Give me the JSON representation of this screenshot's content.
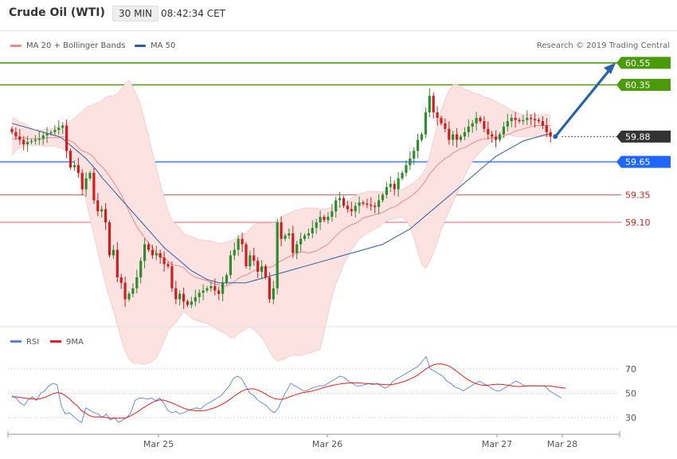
{
  "header": {
    "title": "Crude Oil (WTI)",
    "timeframe": "30 MIN",
    "time": "08:42:34 CET"
  },
  "legend": {
    "items": [
      {
        "label": "MA 20 + Bollinger Bands",
        "color": "#f08a8a"
      },
      {
        "label": "MA 50",
        "color": "#2e5c9e"
      }
    ],
    "credit": "Research © 2019 Trading Central"
  },
  "colors": {
    "up": "#2e8b2e",
    "down": "#cc1f1f",
    "band_fill": "#fde2e2",
    "ma20": "#f08a8a",
    "ma50": "#2e5c9e",
    "target_line": "#4a9a0a",
    "support_line": "#1f66ff",
    "resistance_line": "#e06060",
    "arrow": "#2a62a8"
  },
  "levels": [
    {
      "value": "60.55",
      "price": 60.55,
      "kind": "target",
      "label_bg": "#4a9a0a"
    },
    {
      "value": "60.35",
      "price": 60.35,
      "kind": "target",
      "label_bg": "#4a9a0a"
    },
    {
      "value": "59.88",
      "price": 59.88,
      "kind": "current",
      "label_bg": "#333333"
    },
    {
      "value": "59.65",
      "price": 59.65,
      "kind": "support",
      "label_bg": "#1f66ff"
    },
    {
      "value": "59.35",
      "price": 59.35,
      "kind": "resistance",
      "label_bg": ""
    },
    {
      "value": "59.10",
      "price": 59.1,
      "kind": "resistance",
      "label_bg": ""
    }
  ],
  "chart_data": [
    {
      "type": "candlestick",
      "title": "Crude Oil (WTI) 30 MIN",
      "x_labels": [
        "Mar 25",
        "Mar 26",
        "Mar 27",
        "Mar 28"
      ],
      "closes": [
        59.92,
        59.88,
        59.85,
        59.81,
        59.83,
        59.84,
        59.85,
        59.86,
        59.89,
        59.91,
        59.92,
        59.94,
        59.96,
        59.98,
        59.75,
        59.6,
        59.62,
        59.55,
        59.4,
        59.5,
        59.55,
        59.3,
        59.2,
        59.22,
        59.1,
        58.8,
        58.85,
        58.6,
        58.55,
        58.4,
        58.45,
        58.5,
        58.6,
        58.75,
        58.9,
        58.85,
        58.8,
        58.82,
        58.78,
        58.72,
        58.7,
        58.5,
        58.4,
        58.45,
        58.38,
        58.35,
        58.38,
        58.42,
        58.46,
        58.48,
        58.5,
        58.52,
        58.48,
        58.45,
        58.55,
        58.62,
        58.8,
        58.85,
        58.95,
        58.9,
        58.7,
        58.8,
        58.75,
        58.65,
        58.7,
        58.6,
        58.4,
        58.5,
        59.1,
        58.95,
        58.98,
        59.0,
        58.82,
        58.9,
        58.95,
        58.98,
        59.0,
        59.05,
        59.1,
        59.15,
        59.12,
        59.15,
        59.2,
        59.3,
        59.32,
        59.25,
        59.22,
        59.2,
        59.25,
        59.28,
        59.27,
        59.26,
        59.25,
        59.24,
        59.3,
        59.35,
        59.42,
        59.45,
        59.4,
        59.5,
        59.55,
        59.62,
        59.68,
        59.75,
        59.85,
        59.9,
        60.1,
        60.25,
        60.1,
        60.05,
        60.0,
        59.95,
        59.85,
        59.9,
        59.85,
        59.88,
        59.92,
        59.97,
        60.0,
        60.05,
        60.02,
        59.95,
        59.9,
        59.88,
        59.85,
        59.9,
        59.97,
        60.02,
        60.05,
        60.03,
        60.02,
        60.03,
        60.05,
        60.04,
        60.03,
        60.02,
        59.98,
        59.92,
        59.88
      ],
      "ma20": [
        59.86,
        59.86,
        59.87,
        59.87,
        59.86,
        59.86,
        59.86,
        59.86,
        59.86,
        59.87,
        59.87,
        59.87,
        59.87,
        59.88,
        59.86,
        59.84,
        59.82,
        59.78,
        59.75,
        59.74,
        59.72,
        59.69,
        59.64,
        59.61,
        59.57,
        59.52,
        59.47,
        59.41,
        59.35,
        59.28,
        59.2,
        59.13,
        59.06,
        59.01,
        58.96,
        58.91,
        58.87,
        58.82,
        58.79,
        58.77,
        58.75,
        58.71,
        58.71,
        58.7,
        58.69,
        58.65,
        58.62,
        58.6,
        58.59,
        58.58,
        58.57,
        58.55,
        58.54,
        58.53,
        58.52,
        58.52,
        58.54,
        58.56,
        58.59,
        58.61,
        58.62,
        58.64,
        58.66,
        58.67,
        58.68,
        58.69,
        58.69,
        58.7,
        58.73,
        58.75,
        58.77,
        58.79,
        58.8,
        58.82,
        58.83,
        58.83,
        58.82,
        58.83,
        58.84,
        58.86,
        58.88,
        58.9,
        58.94,
        58.98,
        59.01,
        59.04,
        59.06,
        59.08,
        59.09,
        59.11,
        59.14,
        59.15,
        59.16,
        59.17,
        59.18,
        59.19,
        59.21,
        59.23,
        59.24,
        59.26,
        59.29,
        59.31,
        59.33,
        59.36,
        59.39,
        59.43,
        59.48,
        59.54,
        59.58,
        59.62,
        59.65,
        59.68,
        59.7,
        59.73,
        59.75,
        59.77,
        59.78,
        59.8,
        59.82,
        59.84,
        59.85,
        59.86,
        59.86,
        59.87,
        59.87,
        59.87,
        59.88,
        59.9,
        59.91,
        59.93,
        59.94,
        59.95,
        59.96,
        59.97,
        59.98,
        59.98,
        59.98,
        59.98,
        59.98
      ],
      "bb_upper": [
        60.05,
        60.04,
        60.01,
        60.0,
        59.98,
        59.95,
        59.94,
        59.94,
        59.94,
        59.95,
        59.95,
        59.96,
        59.97,
        59.98,
        60.0,
        60.02,
        60.05,
        60.08,
        60.11,
        60.14,
        60.16,
        60.17,
        60.19,
        60.2,
        60.24,
        60.25,
        60.25,
        60.27,
        60.31,
        60.36,
        60.39,
        60.33,
        60.25,
        60.17,
        60.02,
        59.89,
        59.74,
        59.6,
        59.45,
        59.33,
        59.2,
        59.12,
        59.08,
        59.05,
        59.0,
        58.98,
        58.97,
        58.96,
        58.94,
        58.94,
        58.93,
        58.93,
        58.92,
        58.91,
        58.91,
        58.92,
        58.93,
        58.95,
        58.97,
        58.99,
        59.0,
        59.04,
        59.08,
        59.09,
        59.09,
        59.09,
        59.09,
        59.08,
        59.09,
        59.14,
        59.17,
        59.18,
        59.2,
        59.21,
        59.22,
        59.23,
        59.23,
        59.23,
        59.23,
        59.22,
        59.22,
        59.23,
        59.23,
        59.24,
        59.25,
        59.27,
        59.29,
        59.32,
        59.34,
        59.36,
        59.37,
        59.38,
        59.38,
        59.38,
        59.38,
        59.38,
        59.38,
        59.39,
        59.39,
        59.39,
        59.4,
        59.42,
        59.44,
        59.46,
        59.49,
        59.53,
        59.59,
        59.7,
        59.85,
        59.98,
        60.12,
        60.22,
        60.3,
        60.35,
        60.35,
        60.34,
        60.31,
        60.3,
        60.28,
        60.27,
        60.26,
        60.24,
        60.23,
        60.22,
        60.2,
        60.18,
        60.16,
        60.14,
        60.12,
        60.1,
        60.09,
        60.08,
        60.08,
        60.08,
        60.08,
        60.08,
        60.08,
        60.08,
        60.08
      ],
      "bb_lower": [
        59.71,
        59.75,
        59.78,
        59.8,
        59.8,
        59.8,
        59.8,
        59.8,
        59.79,
        59.79,
        59.79,
        59.79,
        59.78,
        59.77,
        59.74,
        59.7,
        59.65,
        59.56,
        59.44,
        59.3,
        59.14,
        58.98,
        58.83,
        58.68,
        58.54,
        58.41,
        58.3,
        58.17,
        58.04,
        57.93,
        57.86,
        57.82,
        57.82,
        57.81,
        57.81,
        57.82,
        57.84,
        57.87,
        57.94,
        58.02,
        58.11,
        58.15,
        58.19,
        58.24,
        58.29,
        58.26,
        58.23,
        58.21,
        58.2,
        58.19,
        58.18,
        58.16,
        58.14,
        58.12,
        58.1,
        58.08,
        58.05,
        58.05,
        58.09,
        58.11,
        58.13,
        58.15,
        58.13,
        58.09,
        58.05,
        58.0,
        57.93,
        57.87,
        57.84,
        57.85,
        57.86,
        57.88,
        57.89,
        57.89,
        57.89,
        57.9,
        57.91,
        57.92,
        57.93,
        57.95,
        58.1,
        58.27,
        58.42,
        58.54,
        58.62,
        58.72,
        58.79,
        58.85,
        58.9,
        58.95,
        58.98,
        59.0,
        59.02,
        59.04,
        59.06,
        59.09,
        59.11,
        59.13,
        59.13,
        59.14,
        59.15,
        59.12,
        59.06,
        58.96,
        58.83,
        58.72,
        58.68,
        58.74,
        58.82,
        58.92,
        59.03,
        59.12,
        59.2,
        59.28,
        59.36,
        59.44,
        59.52,
        59.6,
        59.65,
        59.7,
        59.74,
        59.78,
        59.81,
        59.84,
        59.87,
        59.89,
        59.9,
        59.9,
        59.89,
        59.88,
        59.88,
        59.88,
        59.88,
        59.88,
        59.88,
        59.88,
        59.88,
        59.88,
        59.88
      ],
      "ma50": [
        60.0,
        59.99,
        59.98,
        59.97,
        59.96,
        59.95,
        59.94,
        59.93,
        59.92,
        59.91,
        59.9,
        59.89,
        59.88,
        59.86,
        59.83,
        59.8,
        59.77,
        59.74,
        59.71,
        59.68,
        59.64,
        59.6,
        59.56,
        59.51,
        59.47,
        59.43,
        59.39,
        59.35,
        59.31,
        59.27,
        59.23,
        59.19,
        59.15,
        59.11,
        59.07,
        59.03,
        58.99,
        58.95,
        58.91,
        58.87,
        58.84,
        58.81,
        58.78,
        58.75,
        58.72,
        58.69,
        58.66,
        58.64,
        58.62,
        58.6,
        58.58,
        58.57,
        58.56,
        58.55,
        58.55,
        58.55,
        58.55,
        58.55,
        58.55,
        58.55,
        58.55,
        58.56,
        58.57,
        58.58,
        58.59,
        58.6,
        58.61,
        58.62,
        58.63,
        58.64,
        58.65,
        58.66,
        58.67,
        58.68,
        58.69,
        58.7,
        58.71,
        58.72,
        58.73,
        58.74,
        58.75,
        58.76,
        58.77,
        58.78,
        58.79,
        58.8,
        58.81,
        58.82,
        58.83,
        58.84,
        58.85,
        58.86,
        58.87,
        58.88,
        58.89,
        58.9,
        58.92,
        58.94,
        58.96,
        58.98,
        59.0,
        59.02,
        59.04,
        59.07,
        59.1,
        59.13,
        59.16,
        59.19,
        59.22,
        59.25,
        59.28,
        59.31,
        59.34,
        59.37,
        59.4,
        59.43,
        59.46,
        59.49,
        59.52,
        59.55,
        59.58,
        59.61,
        59.64,
        59.67,
        59.7,
        59.72,
        59.74,
        59.76,
        59.78,
        59.8,
        59.82,
        59.84,
        59.85,
        59.86,
        59.87,
        59.88,
        59.89,
        59.9,
        59.9
      ],
      "forecast_arrow": {
        "from": 59.88,
        "to": 60.55
      },
      "series": [
        {
          "name": "MA 20 + Bollinger Bands"
        },
        {
          "name": "MA 50"
        }
      ]
    },
    {
      "type": "line",
      "series": [
        {
          "name": "RSI",
          "values": [
            48,
            46,
            42,
            40,
            45,
            47,
            44,
            50,
            52,
            56,
            58,
            57,
            40,
            33,
            34,
            31,
            28,
            26,
            38,
            36,
            34,
            33,
            30,
            33,
            28,
            30,
            26,
            28,
            30,
            34,
            44,
            46,
            46,
            45,
            46,
            44,
            46,
            42,
            36,
            34,
            35,
            33,
            34,
            36,
            37,
            38,
            37,
            40,
            42,
            44,
            46,
            48,
            52,
            56,
            62,
            64,
            62,
            56,
            50,
            48,
            44,
            42,
            40,
            36,
            34,
            38,
            46,
            52,
            58,
            56,
            54,
            52,
            52,
            54,
            55,
            56,
            56,
            58,
            60,
            62,
            64,
            63,
            60,
            58,
            56,
            56,
            57,
            58,
            57,
            58,
            56,
            54,
            56,
            60,
            62,
            64,
            66,
            68,
            70,
            72,
            76,
            80,
            70,
            68,
            66,
            64,
            60,
            58,
            55,
            54,
            52,
            54,
            56,
            58,
            60,
            58,
            56,
            54,
            52,
            52,
            54,
            56,
            58,
            60,
            58,
            56,
            56,
            56,
            56,
            56,
            56,
            52,
            50,
            48,
            46
          ]
        },
        {
          "name": "9MA",
          "values": [
            47,
            47,
            46.5,
            46,
            45.5,
            45.3,
            45,
            45.5,
            46.5,
            48,
            49.5,
            50.5,
            50,
            48,
            45.5,
            42,
            39.5,
            35.5,
            33.5,
            31.5,
            30.5,
            30.5,
            30.5,
            30,
            29.5,
            29.5,
            29.5,
            29.5,
            30,
            31.5,
            33.5,
            35.5,
            38,
            40,
            42,
            43.5,
            44.5,
            44.3,
            43.2,
            42,
            40.5,
            39,
            37.5,
            36.5,
            36,
            35.5,
            35.5,
            35.8,
            36.5,
            37.5,
            38.8,
            40.5,
            42.3,
            44.5,
            47,
            49.5,
            51.5,
            53,
            53.5,
            53.5,
            52.5,
            51,
            49,
            47,
            45.5,
            45,
            45,
            46,
            47.5,
            48.5,
            49.5,
            50.5,
            51,
            51.5,
            52.5,
            53.5,
            54.5,
            55.5,
            56.3,
            57,
            57.5,
            58,
            58.3,
            58.5,
            58.5,
            58.3,
            58,
            57.8,
            57.6,
            57.5,
            57.3,
            57,
            57,
            57.3,
            58,
            59,
            60,
            61.5,
            63,
            65,
            67.5,
            70,
            72,
            73.5,
            74,
            73.8,
            73,
            71.5,
            69,
            66.5,
            64,
            61.5,
            59.5,
            58,
            57,
            56.5,
            56.5,
            57,
            57.3,
            57.3,
            57,
            56.5,
            56,
            55.5,
            55.5,
            55.8,
            56,
            56,
            56,
            56,
            56,
            56,
            55.5,
            55,
            54.5,
            54
          ]
        }
      ],
      "y_ticks": [
        30,
        50,
        70
      ]
    }
  ]
}
